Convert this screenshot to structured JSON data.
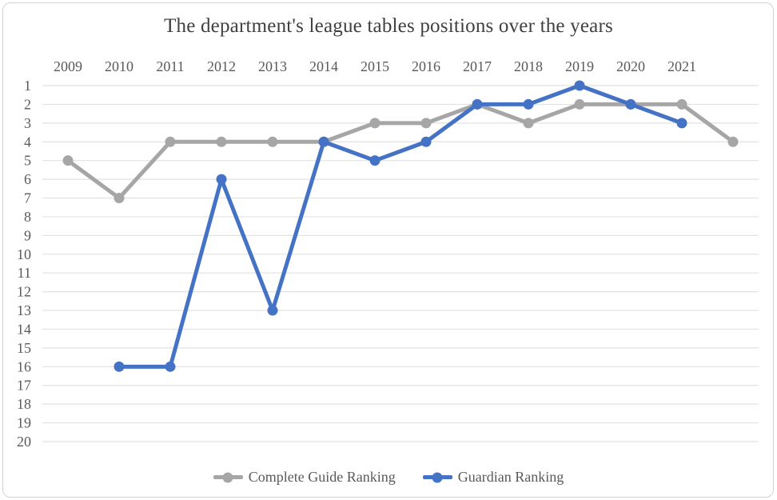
{
  "chart_data": {
    "type": "line",
    "title": "The department's league tables positions over the years",
    "categories": [
      "2009",
      "2010",
      "2011",
      "2012",
      "2013",
      "2014",
      "2015",
      "2016",
      "2017",
      "2018",
      "2019",
      "2020",
      "2021",
      ""
    ],
    "series": [
      {
        "name": "Complete Guide Ranking",
        "color": "#a6a6a6",
        "start_index": 0,
        "values": [
          5,
          7,
          4,
          4,
          4,
          4,
          3,
          3,
          2,
          3,
          2,
          2,
          2,
          4
        ]
      },
      {
        "name": "Guardian Ranking",
        "color": "#4472c4",
        "start_index": 1,
        "values": [
          16,
          16,
          6,
          13,
          4,
          5,
          4,
          2,
          2,
          1,
          2,
          3
        ]
      }
    ],
    "y_axis": {
      "min": 1,
      "max": 20,
      "tick_step": 1,
      "inverted": true,
      "label_color": "#595959"
    },
    "x_axis": {
      "position": "top",
      "label_color": "#595959"
    },
    "gridlines": "horizontal",
    "gridline_color": "#e2e2e2",
    "legend_position": "bottom",
    "title_color": "#404040"
  }
}
